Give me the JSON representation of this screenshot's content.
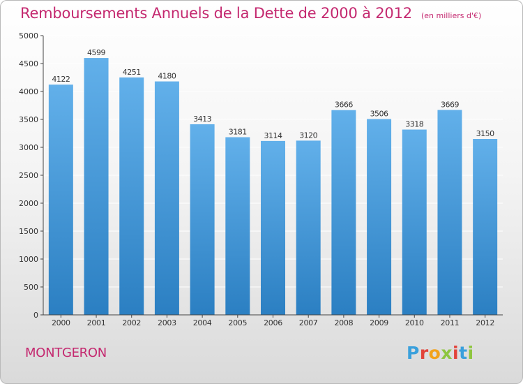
{
  "header": {
    "title": "Remboursements Annuels de la Dette de 2000 à 2012",
    "unit": "(en milliers d'€)"
  },
  "footer": {
    "city": "MONTGERON",
    "logo_text": "Proxiti",
    "logo_colors": [
      "#3aa0dc",
      "#e2433a",
      "#f2a21b",
      "#8ec63f",
      "#e2433a",
      "#3aa0dc",
      "#8ec63f"
    ]
  },
  "colors": {
    "bar_light": "#62b0ea",
    "bar_dark": "#2b7fc2",
    "title": "#c4286f",
    "grid": "#ffffff",
    "axis": "#444444"
  },
  "chart_data": {
    "type": "bar",
    "title": "Remboursements Annuels de la Dette de 2000 à 2012",
    "subtitle": "(en milliers d'€)",
    "xlabel": "",
    "ylabel": "",
    "categories": [
      "2000",
      "2001",
      "2002",
      "2003",
      "2004",
      "2005",
      "2006",
      "2007",
      "2008",
      "2009",
      "2010",
      "2011",
      "2012"
    ],
    "values": [
      4122,
      4599,
      4251,
      4180,
      3413,
      3181,
      3114,
      3120,
      3666,
      3506,
      3318,
      3669,
      3150
    ],
    "ylim": [
      0,
      5000
    ],
    "yticks": [
      0,
      500,
      1000,
      1500,
      2000,
      2500,
      3000,
      3500,
      4000,
      4500,
      5000
    ],
    "grid": true,
    "legend": "none"
  }
}
